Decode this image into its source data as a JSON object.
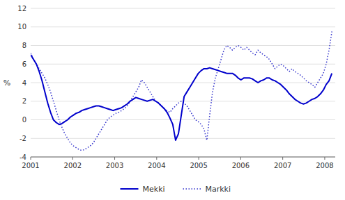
{
  "chart_data": {
    "type": "line",
    "ylabel": "%",
    "x": [
      2001.0,
      2001.0676,
      2001.1353,
      2001.2029,
      2001.2706,
      2001.3382,
      2001.4058,
      2001.4735,
      2001.5411,
      2001.6088,
      2001.6764,
      2001.7441,
      2001.8117,
      2001.8793,
      2001.947,
      2002.0146,
      2002.0823,
      2002.1499,
      2002.2175,
      2002.2852,
      2002.3528,
      2002.4205,
      2002.4881,
      2002.5558,
      2002.6234,
      2002.691,
      2002.7587,
      2002.8263,
      2002.894,
      2002.9616,
      2003.0292,
      2003.0969,
      2003.1645,
      2003.2322,
      2003.2998,
      2003.3675,
      2003.4351,
      2003.5027,
      2003.5704,
      2003.638,
      2003.7057,
      2003.7733,
      2003.8409,
      2003.9086,
      2003.9762,
      2004.0439,
      2004.1115,
      2004.1792,
      2004.2468,
      2004.3144,
      2004.3821,
      2004.4497,
      2004.5174,
      2004.585,
      2004.6526,
      2004.7203,
      2004.7879,
      2004.8556,
      2004.9232,
      2004.9908,
      2005.0585,
      2005.1261,
      2005.1938,
      2005.2614,
      2005.3291,
      2005.3967,
      2005.4643,
      2005.532,
      2005.5996,
      2005.6673,
      2005.7349,
      2005.8025,
      2005.8702,
      2005.9378,
      2006.0055,
      2006.0731,
      2006.1408,
      2006.2084,
      2006.276,
      2006.3437,
      2006.4113,
      2006.479,
      2006.5466,
      2006.6142,
      2006.6819,
      2006.7495,
      2006.8172,
      2006.8848,
      2006.9525,
      2007.0201,
      2007.0877,
      2007.1554,
      2007.223,
      2007.2907,
      2007.3583,
      2007.4259,
      2007.4936,
      2007.5612,
      2007.6289,
      2007.6965,
      2007.7642,
      2007.8318,
      2007.8994,
      2007.9671,
      2008.0347,
      2008.1024,
      2008.17
    ],
    "series": [
      {
        "name": "Mekki",
        "color": "#0000cc",
        "line_style": "solid",
        "values": [
          7.0,
          6.5,
          6.0,
          5.2,
          4.2,
          3.0,
          1.8,
          0.8,
          0.0,
          -0.3,
          -0.5,
          -0.4,
          -0.2,
          0.0,
          0.3,
          0.5,
          0.7,
          0.8,
          1.0,
          1.1,
          1.2,
          1.3,
          1.4,
          1.5,
          1.5,
          1.4,
          1.3,
          1.2,
          1.1,
          1.0,
          1.1,
          1.2,
          1.3,
          1.5,
          1.7,
          2.0,
          2.2,
          2.4,
          2.3,
          2.2,
          2.1,
          2.0,
          2.1,
          2.2,
          2.0,
          1.8,
          1.5,
          1.2,
          0.8,
          0.2,
          -0.5,
          -2.2,
          -1.5,
          0.5,
          2.5,
          3.0,
          3.5,
          4.0,
          4.5,
          5.0,
          5.3,
          5.5,
          5.5,
          5.6,
          5.5,
          5.4,
          5.3,
          5.2,
          5.1,
          5.0,
          5.0,
          5.0,
          4.8,
          4.5,
          4.3,
          4.5,
          4.5,
          4.5,
          4.4,
          4.2,
          4.0,
          4.2,
          4.3,
          4.5,
          4.5,
          4.3,
          4.2,
          4.0,
          3.8,
          3.5,
          3.2,
          2.8,
          2.5,
          2.2,
          2.0,
          1.8,
          1.7,
          1.8,
          2.0,
          2.2,
          2.3,
          2.5,
          2.8,
          3.2,
          3.8,
          4.2,
          5.0
        ]
      },
      {
        "name": "Markki",
        "color": "#3333cc",
        "line_style": "dotted",
        "values": [
          7.2,
          6.5,
          6.0,
          5.5,
          5.0,
          4.5,
          3.8,
          3.0,
          2.0,
          1.0,
          0.0,
          -0.8,
          -1.5,
          -2.0,
          -2.5,
          -2.8,
          -3.0,
          -3.2,
          -3.3,
          -3.2,
          -3.0,
          -2.8,
          -2.5,
          -2.0,
          -1.5,
          -1.0,
          -0.5,
          0.0,
          0.3,
          0.5,
          0.7,
          0.8,
          1.0,
          1.2,
          1.5,
          2.0,
          2.5,
          3.0,
          3.5,
          4.3,
          4.0,
          3.5,
          3.0,
          2.5,
          2.0,
          1.8,
          1.5,
          1.2,
          1.0,
          0.8,
          1.2,
          1.5,
          1.8,
          2.0,
          1.8,
          1.5,
          1.0,
          0.5,
          0.0,
          -0.2,
          -0.5,
          -1.0,
          -2.2,
          0.5,
          3.0,
          4.5,
          5.5,
          6.5,
          7.5,
          8.0,
          7.8,
          7.5,
          7.8,
          8.0,
          7.8,
          7.5,
          7.8,
          7.5,
          7.2,
          7.0,
          7.5,
          7.2,
          7.0,
          6.8,
          6.5,
          6.0,
          5.5,
          5.8,
          6.0,
          5.8,
          5.5,
          5.2,
          5.5,
          5.2,
          5.0,
          4.8,
          4.5,
          4.2,
          4.0,
          3.8,
          3.5,
          4.0,
          4.5,
          5.0,
          6.0,
          7.5,
          9.5
        ]
      }
    ],
    "xlim": [
      2001.0,
      2008.25
    ],
    "xticks": [
      2001,
      2002,
      2003,
      2004,
      2005,
      2006,
      2007,
      2008
    ],
    "ylim": [
      -4,
      12
    ],
    "yticks": [
      -4,
      -2,
      0,
      2,
      4,
      6,
      8,
      10,
      12
    ],
    "grid": true,
    "legend": "bottom"
  }
}
